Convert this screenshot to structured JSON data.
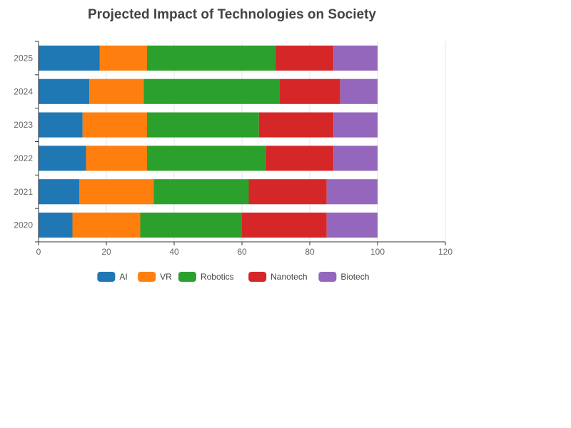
{
  "chart_data": {
    "type": "bar",
    "orientation": "horizontal",
    "stacked": true,
    "title": "Projected Impact of Technologies on Society",
    "xlabel": "",
    "ylabel": "",
    "categories": [
      "2020",
      "2021",
      "2022",
      "2023",
      "2024",
      "2025"
    ],
    "xlim": [
      0,
      120
    ],
    "xticks": [
      0,
      20,
      40,
      60,
      80,
      100,
      120
    ],
    "grid": true,
    "legend_position": "bottom",
    "series": [
      {
        "name": "AI",
        "color": "#1f77b4",
        "values": [
          10,
          12,
          14,
          13,
          15,
          18
        ]
      },
      {
        "name": "VR",
        "color": "#ff7f0e",
        "values": [
          20,
          22,
          18,
          19,
          16,
          14
        ]
      },
      {
        "name": "Robotics",
        "color": "#2ca02c",
        "values": [
          30,
          28,
          35,
          33,
          40,
          38
        ]
      },
      {
        "name": "Nanotech",
        "color": "#d62728",
        "values": [
          25,
          23,
          20,
          22,
          18,
          17
        ]
      },
      {
        "name": "Biotech",
        "color": "#9467bd",
        "values": [
          15,
          15,
          13,
          13,
          11,
          13
        ]
      }
    ]
  }
}
